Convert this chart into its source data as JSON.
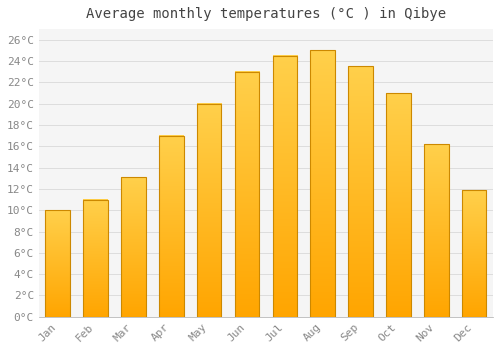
{
  "title": "Average monthly temperatures (°C ) in Qibye",
  "months": [
    "Jan",
    "Feb",
    "Mar",
    "Apr",
    "May",
    "Jun",
    "Jul",
    "Aug",
    "Sep",
    "Oct",
    "Nov",
    "Dec"
  ],
  "values": [
    10.0,
    11.0,
    13.1,
    17.0,
    20.0,
    23.0,
    24.5,
    25.0,
    23.5,
    21.0,
    16.2,
    11.9
  ],
  "bar_color_main": "#FFA500",
  "bar_color_light": "#FFD04B",
  "bar_edge_color": "#CC8800",
  "background_color": "#FFFFFF",
  "plot_bg_color": "#F5F5F5",
  "grid_color": "#DDDDDD",
  "text_color": "#888888",
  "title_color": "#444444",
  "ylim": [
    0,
    27
  ],
  "ytick_step": 2,
  "title_fontsize": 10,
  "tick_fontsize": 8
}
